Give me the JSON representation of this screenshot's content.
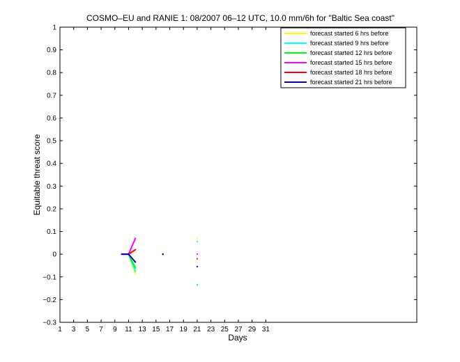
{
  "chart_data": {
    "type": "line",
    "title": "COSMO–EU and RANIE 1: 08/2007 06–12 UTC, 10.0 mm/6h for \"Baltic Sea coast\"",
    "xlabel": "Days",
    "ylabel": "Equitable threat score",
    "xlim": [
      1,
      53
    ],
    "ylim": [
      -0.3,
      1
    ],
    "xticks": [
      1,
      3,
      5,
      7,
      9,
      11,
      13,
      15,
      17,
      19,
      21,
      23,
      25,
      27,
      29,
      31
    ],
    "yticks": [
      -0.3,
      -0.2,
      -0.1,
      0,
      0.1,
      0.2,
      0.3,
      0.4,
      0.5,
      0.6,
      0.7,
      0.8,
      0.9,
      1
    ],
    "ytick_labels": [
      "−0.3",
      "−0.2",
      "−0.1",
      "0",
      "0.1",
      "0.2",
      "0.3",
      "0.4",
      "0.5",
      "0.6",
      "0.7",
      "0.8",
      "0.9",
      "1"
    ],
    "legend_position": "top-right",
    "grid": false,
    "series": [
      {
        "name": "forecast started 6 hrs before",
        "color": "#ffff00",
        "x": [
          10,
          11,
          12,
          16,
          21
        ],
        "y": [
          0,
          0,
          -0.085,
          0,
          0.07
        ]
      },
      {
        "name": "forecast started 9 hrs before",
        "color": "#00ffff",
        "x": [
          10,
          11,
          12,
          16,
          21
        ],
        "y": [
          0,
          0,
          -0.075,
          0,
          0.055
        ]
      },
      {
        "name": "forecast started 12 hrs before",
        "color": "#00ff00",
        "x": [
          10,
          11,
          12,
          16,
          21
        ],
        "y": [
          0,
          0,
          -0.06,
          0,
          -0.135
        ]
      },
      {
        "name": "forecast started 15 hrs before",
        "color": "#ff00ff",
        "x": [
          10,
          11,
          12,
          16,
          21
        ],
        "y": [
          0,
          0,
          0.07,
          0,
          0
        ]
      },
      {
        "name": "forecast started 18 hrs before",
        "color": "#ff0000",
        "x": [
          10,
          11,
          12,
          16,
          21
        ],
        "y": [
          0,
          0,
          0.02,
          0,
          -0.02
        ]
      },
      {
        "name": "forecast started 21 hrs before",
        "color": "#0000cc",
        "x": [
          10,
          11,
          12,
          16,
          21
        ],
        "y": [
          0,
          0,
          -0.035,
          0,
          -0.055
        ]
      }
    ]
  }
}
